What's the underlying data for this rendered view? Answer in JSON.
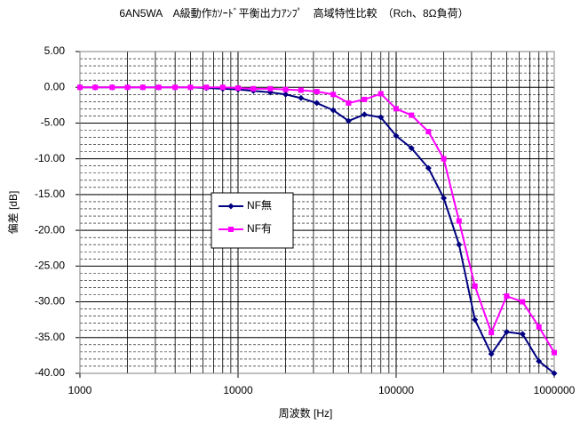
{
  "chart_data": {
    "type": "line",
    "title": "6AN5WA　A級動作ｶｿｰﾄﾞ平衡出力ｱﾝﾌﾟ　高域特性比較　（Rch、8Ω負荷）",
    "x_label": "周波数 [Hz]",
    "y_label": "偏差 [dB]",
    "xscale": "log",
    "grid": true,
    "x": [
      1000,
      1250,
      1600,
      2000,
      2500,
      3150,
      4000,
      5000,
      6300,
      8000,
      10000,
      12500,
      16000,
      20000,
      25000,
      31500,
      40000,
      50000,
      63000,
      80000,
      100000,
      125000,
      160000,
      200000,
      250000,
      315000,
      400000,
      500000,
      630000,
      800000,
      1000000
    ],
    "series": [
      {
        "name": "NF無",
        "color": "#000080",
        "marker": "diamond",
        "values": [
          0,
          0,
          0,
          0,
          0,
          0,
          0,
          0,
          -0.1,
          -0.2,
          -0.3,
          -0.5,
          -0.7,
          -1.0,
          -1.5,
          -2.2,
          -3.2,
          -4.7,
          -3.8,
          -4.2,
          -6.8,
          -8.5,
          -11.3,
          -15.5,
          -22,
          -32.5,
          -37.3,
          -34.2,
          -34.5,
          -38.3,
          -40
        ]
      },
      {
        "name": "NF有",
        "color": "#ff00ff",
        "marker": "square",
        "values": [
          0,
          0,
          0,
          0,
          0,
          0,
          0,
          0,
          0,
          0,
          -0.1,
          -0.2,
          -0.2,
          -0.3,
          -0.4,
          -0.6,
          -1.0,
          -2.2,
          -1.7,
          -0.9,
          -3.0,
          -3.9,
          -6.2,
          -10.0,
          -18.7,
          -27.8,
          -34.3,
          -29.2,
          -30.0,
          -33.5,
          -37.1
        ]
      }
    ],
    "xlim": [
      1000,
      1000000
    ],
    "xticks": [
      1000,
      10000,
      100000,
      1000000
    ],
    "ylim": [
      -40,
      5
    ],
    "yticks": [
      {
        "value": 5,
        "label": "5.00"
      },
      {
        "value": 0,
        "label": "0.00"
      },
      {
        "value": -5,
        "label": "-5.00"
      },
      {
        "value": -10,
        "label": "-10.00"
      },
      {
        "value": -15,
        "label": "-15.00"
      },
      {
        "value": -20,
        "label": "-20.00"
      },
      {
        "value": -25,
        "label": "-25.00"
      },
      {
        "value": -30,
        "label": "-30.00"
      },
      {
        "value": -35,
        "label": "-35.00"
      },
      {
        "value": -40,
        "label": "-40.00"
      }
    ]
  }
}
